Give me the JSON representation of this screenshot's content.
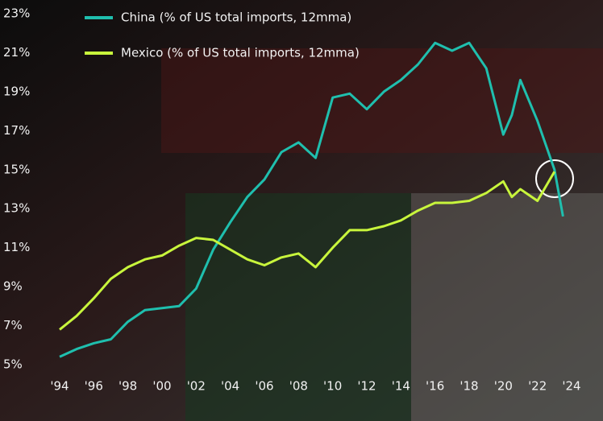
{
  "chart_data": {
    "type": "line",
    "xlim": [
      1993.7,
      2025.7
    ],
    "xticks": [
      {
        "value": 1994,
        "label": "'94"
      },
      {
        "value": 1996,
        "label": "'96"
      },
      {
        "value": 1998,
        "label": "'98"
      },
      {
        "value": 2000,
        "label": "'00"
      },
      {
        "value": 2002,
        "label": "'02"
      },
      {
        "value": 2004,
        "label": "'04"
      },
      {
        "value": 2006,
        "label": "'06"
      },
      {
        "value": 2008,
        "label": "'08"
      },
      {
        "value": 2010,
        "label": "'10"
      },
      {
        "value": 2012,
        "label": "'12"
      },
      {
        "value": 2014,
        "label": "'14"
      },
      {
        "value": 2016,
        "label": "'16"
      },
      {
        "value": 2018,
        "label": "'18"
      },
      {
        "value": 2020,
        "label": "'20"
      },
      {
        "value": 2022,
        "label": "'22"
      },
      {
        "value": 2024,
        "label": "'24"
      }
    ],
    "ylim": [
      5,
      23
    ],
    "yticks": [
      {
        "value": 5,
        "label": "5%"
      },
      {
        "value": 7,
        "label": "7%"
      },
      {
        "value": 9,
        "label": "9%"
      },
      {
        "value": 11,
        "label": "11%"
      },
      {
        "value": 13,
        "label": "13%"
      },
      {
        "value": 15,
        "label": "15%"
      },
      {
        "value": 17,
        "label": "17%"
      },
      {
        "value": 19,
        "label": "19%"
      },
      {
        "value": 21,
        "label": "21%"
      },
      {
        "value": 23,
        "label": "23%"
      }
    ],
    "x": [
      1994,
      1995,
      1996,
      1997,
      1998,
      1999,
      2000,
      2001,
      2002,
      2003,
      2004,
      2005,
      2006,
      2007,
      2008,
      2009,
      2010,
      2011,
      2012,
      2013,
      2014,
      2015,
      2016,
      2017,
      2018,
      2019,
      2020,
      2020.5,
      2021,
      2022,
      2023,
      2023.5
    ],
    "series": [
      {
        "name": "China (% of US total imports, 12mma)",
        "color": "#1fbfae",
        "values": [
          5.4,
          5.8,
          6.1,
          6.3,
          7.2,
          7.8,
          7.9,
          8.0,
          8.9,
          10.9,
          12.3,
          13.6,
          14.5,
          15.9,
          16.4,
          15.6,
          18.7,
          18.9,
          18.1,
          19.0,
          19.6,
          20.4,
          21.5,
          21.1,
          21.5,
          20.2,
          16.8,
          17.8,
          19.6,
          17.5,
          15.0,
          12.6
        ]
      },
      {
        "name": "Mexico (% of US total imports, 12mma)",
        "color": "#c8f53c",
        "values": [
          6.8,
          7.5,
          8.4,
          9.4,
          10.0,
          10.4,
          10.6,
          11.1,
          11.5,
          11.4,
          10.9,
          10.4,
          10.1,
          10.5,
          10.7,
          10.0,
          11.0,
          11.9,
          11.9,
          12.1,
          12.4,
          12.9,
          13.3,
          13.3,
          13.4,
          13.8,
          14.4,
          13.6,
          14.0,
          13.4,
          14.9,
          null
        ]
      }
    ]
  }
}
